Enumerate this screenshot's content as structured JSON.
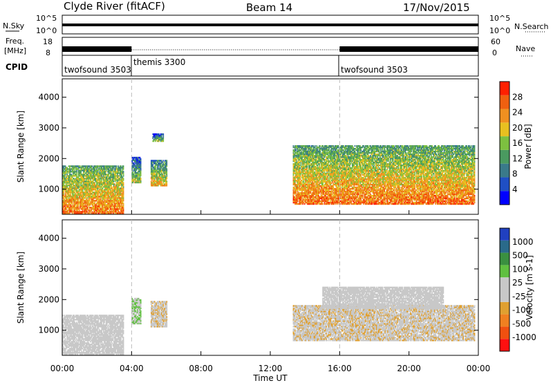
{
  "header": {
    "station": "Clyde River (fitACF)",
    "beam": "Beam 14",
    "date": "17/Nov/2015"
  },
  "strips": {
    "nsky": {
      "label": "N.Sky",
      "tick_top": "10^5",
      "tick_bottom": "10^0"
    },
    "nsearch": {
      "label": "N.Search",
      "tick_top": "10^5",
      "tick_bottom": "10^0"
    },
    "freq": {
      "label_line1": "Freq.",
      "label_line2": "[MHz]",
      "tick_top": "18",
      "tick_bottom": "8"
    },
    "nave": {
      "label": "Nave",
      "tick_top": "60",
      "tick_bottom": "0"
    },
    "cpid": {
      "label": "CPID",
      "segments": [
        {
          "name": "twofsound 3503",
          "start_hour": 0
        },
        {
          "name": "themis 3300",
          "start_hour": 4
        },
        {
          "name": "twofsound 3503",
          "start_hour": 16
        }
      ]
    }
  },
  "x_axis": {
    "label": "Time UT",
    "ticks": [
      "00:00",
      "04:00",
      "08:00",
      "12:00",
      "16:00",
      "20:00",
      "00:00"
    ]
  },
  "chart_data": [
    {
      "type": "heatmap",
      "quantity": "Power",
      "ylabel": "Slant Range [km]",
      "xlabel": "Time UT",
      "xlim": [
        0,
        24
      ],
      "ylim": [
        180,
        4600
      ],
      "yticks": [
        "1000",
        "2000",
        "3000",
        "4000"
      ],
      "colorbar": {
        "label": "Power [dB]",
        "ticks": [
          "4",
          "8",
          "12",
          "16",
          "20",
          "24",
          "28"
        ],
        "range": [
          0,
          32
        ]
      },
      "echo_regions": [
        {
          "t0": 0.0,
          "t1": 3.5,
          "r0": 200,
          "r1": 1750,
          "level": 26
        },
        {
          "t0": 4.0,
          "t1": 4.5,
          "r0": 1200,
          "r1": 2050,
          "level": 18
        },
        {
          "t0": 5.1,
          "t1": 6.0,
          "r0": 1100,
          "r1": 1950,
          "level": 22
        },
        {
          "t0": 5.2,
          "t1": 5.8,
          "r0": 2550,
          "r1": 2800,
          "level": 16
        },
        {
          "t0": 13.3,
          "t1": 23.8,
          "r0": 500,
          "r1": 2400,
          "level": 26
        }
      ]
    },
    {
      "type": "heatmap",
      "quantity": "Velocity",
      "ylabel": "Slant Range [km]",
      "xlabel": "Time UT",
      "xlim": [
        0,
        24
      ],
      "ylim": [
        180,
        4600
      ],
      "yticks": [
        "1000",
        "2000",
        "3000",
        "4000"
      ],
      "colorbar": {
        "label": "Velocity [m s-1]",
        "ticks": [
          "1000",
          "500",
          "100",
          "25",
          "-25",
          "-100",
          "-500",
          "-1000"
        ],
        "range": [
          -1000,
          1000
        ]
      },
      "echo_regions": [
        {
          "t0": 0.0,
          "t1": 3.5,
          "r0": 200,
          "r1": 1500,
          "value": 50
        },
        {
          "t0": 4.0,
          "t1": 4.5,
          "r0": 1200,
          "r1": 2050,
          "value": 200
        },
        {
          "t0": 5.1,
          "t1": 6.0,
          "r0": 1100,
          "r1": 1950,
          "value": -150
        },
        {
          "t0": 13.3,
          "t1": 23.8,
          "r0": 650,
          "r1": 1800,
          "value": -150
        },
        {
          "t0": 15.0,
          "t1": 22.0,
          "r0": 1700,
          "r1": 2400,
          "value": 0
        }
      ]
    }
  ]
}
